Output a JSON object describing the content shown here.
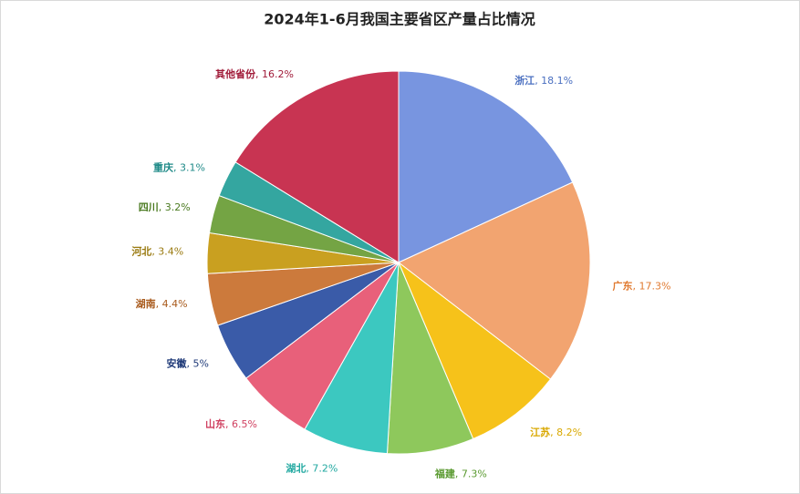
{
  "chart_data": {
    "type": "pie",
    "title": "2024年1-6月我国主要省区产量占比情况",
    "categories": [
      "浙江",
      "广东",
      "江苏",
      "福建",
      "湖北",
      "山东",
      "安徽",
      "湖南",
      "河北",
      "四川",
      "重庆",
      "其他省份"
    ],
    "values": [
      18.1,
      17.3,
      8.2,
      7.3,
      7.2,
      6.5,
      5,
      4.4,
      3.4,
      3.2,
      3.1,
      16.2
    ],
    "value_labels": [
      ", 18.1%",
      ", 17.3%",
      ", 8.2%",
      ", 7.3%",
      ", 7.2%",
      ", 6.5%",
      ", 5%",
      ", 4.4%",
      ", 3.4%",
      ", 3.2%",
      ", 3.1%",
      ", 16.2%"
    ],
    "colors": [
      "#7895e0",
      "#f2a470",
      "#f6c21a",
      "#8ec85c",
      "#3cc8c0",
      "#e8607a",
      "#3a5ba8",
      "#cc7a3c",
      "#c9a020",
      "#74a444",
      "#34a6a0",
      "#c83452"
    ],
    "label_colors": [
      "#4a6fc0",
      "#e07a30",
      "#d9a800",
      "#5a9a30",
      "#20a8a0",
      "#d04060",
      "#1f3a78",
      "#a85a1c",
      "#9a7a10",
      "#4a7a20",
      "#1f8a88",
      "#a01a38"
    ]
  }
}
